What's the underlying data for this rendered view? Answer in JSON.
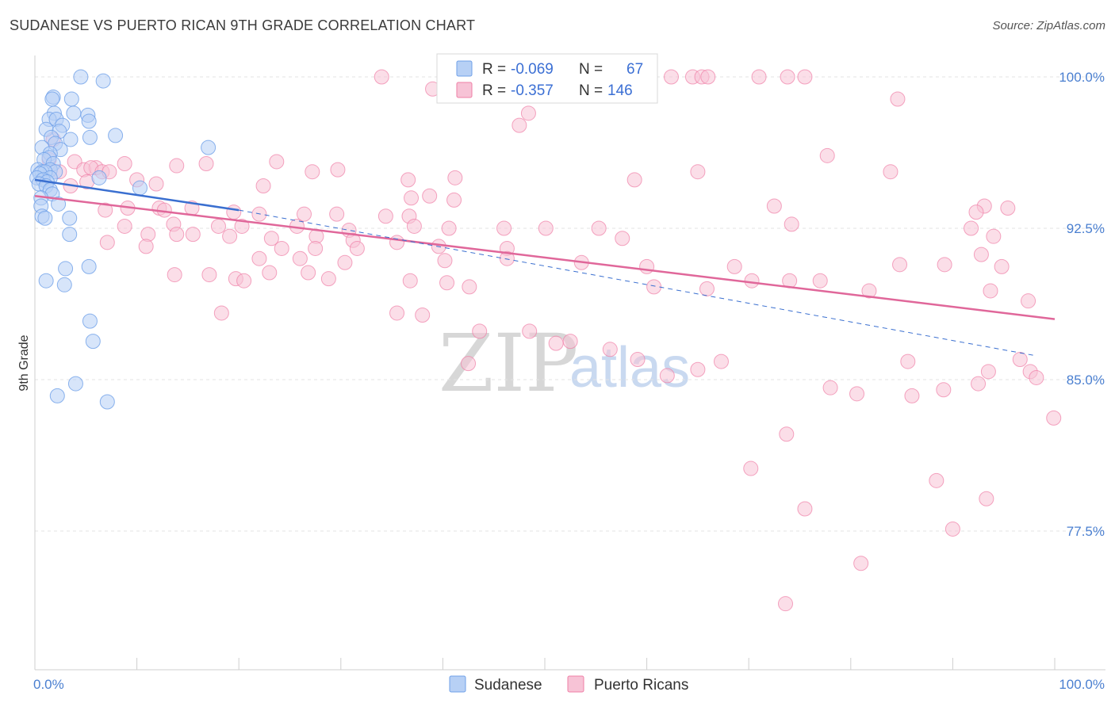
{
  "title": "SUDANESE VS PUERTO RICAN 9TH GRADE CORRELATION CHART",
  "source": "Source: ZipAtlas.com",
  "colors": {
    "sudanese": "#6fa0e8",
    "sudanese_fill": "#b7d0f5",
    "puerto_rican": "#ef7fa6",
    "puerto_rican_fill": "#f7c3d6",
    "blue_line": "#3a6fd0",
    "pink_line": "#e0679a",
    "label_blue": "#3b6fd4"
  },
  "legend": {
    "row1": {
      "r_label": "R =",
      "r_value": "-0.069",
      "n_label": "N =",
      "n_value": "67"
    },
    "row2": {
      "r_label": "R =",
      "r_value": "-0.357",
      "n_label": "N =",
      "n_value": "146"
    }
  },
  "bottom_legend": {
    "sudanese": "Sudanese",
    "puerto_ricans": "Puerto Ricans"
  },
  "watermark": {
    "zip": "ZIP",
    "atlas": "atlas"
  },
  "chart_data": {
    "type": "scatter",
    "xlabel": "",
    "ylabel": "9th Grade",
    "xlim": [
      0,
      100
    ],
    "ylim": [
      71.0,
      100.6
    ],
    "x_tick_labels": [
      {
        "v": 0,
        "label": "0.0%"
      },
      {
        "v": 100,
        "label": "100.0%"
      }
    ],
    "x_minor_ticks": [
      0,
      10,
      20,
      30,
      40,
      50,
      60,
      70,
      80,
      90,
      100
    ],
    "y_ticks": [
      {
        "v": 100.0,
        "label": "100.0%"
      },
      {
        "v": 92.5,
        "label": "92.5%"
      },
      {
        "v": 85.0,
        "label": "85.0%"
      },
      {
        "v": 77.5,
        "label": "77.5%"
      }
    ],
    "series": [
      {
        "name": "Sudanese",
        "trend": {
          "x0": 0,
          "y0": 94.9,
          "x1": 20,
          "y1": 93.4,
          "dashed_to_x": 98,
          "dashed_to_y": 86.2
        },
        "points": [
          [
            4.5,
            100.0
          ],
          [
            6.7,
            99.8
          ],
          [
            1.8,
            99.0
          ],
          [
            3.6,
            98.9
          ],
          [
            1.7,
            98.9
          ],
          [
            3.8,
            98.2
          ],
          [
            5.2,
            98.1
          ],
          [
            1.9,
            98.2
          ],
          [
            1.4,
            97.9
          ],
          [
            5.3,
            97.8
          ],
          [
            2.1,
            97.9
          ],
          [
            2.7,
            97.6
          ],
          [
            1.1,
            97.4
          ],
          [
            2.4,
            97.3
          ],
          [
            7.9,
            97.1
          ],
          [
            5.4,
            97.0
          ],
          [
            1.6,
            97.0
          ],
          [
            3.5,
            96.9
          ],
          [
            2.0,
            96.7
          ],
          [
            0.7,
            96.5
          ],
          [
            17.0,
            96.5
          ],
          [
            2.5,
            96.4
          ],
          [
            1.5,
            96.2
          ],
          [
            1.4,
            96.0
          ],
          [
            0.9,
            95.9
          ],
          [
            1.8,
            95.7
          ],
          [
            1.5,
            95.4
          ],
          [
            0.3,
            95.4
          ],
          [
            0.7,
            95.3
          ],
          [
            2.0,
            95.3
          ],
          [
            1.0,
            95.3
          ],
          [
            0.5,
            95.2
          ],
          [
            0.2,
            95.0
          ],
          [
            1.5,
            95.0
          ],
          [
            6.3,
            95.0
          ],
          [
            0.8,
            94.9
          ],
          [
            1.2,
            94.8
          ],
          [
            0.4,
            94.7
          ],
          [
            1.1,
            94.6
          ],
          [
            1.5,
            94.4
          ],
          [
            10.3,
            94.5
          ],
          [
            1.7,
            94.2
          ],
          [
            0.6,
            94.0
          ],
          [
            2.3,
            93.7
          ],
          [
            0.6,
            93.6
          ],
          [
            0.7,
            93.1
          ],
          [
            1.0,
            93.0
          ],
          [
            3.4,
            93.0
          ],
          [
            3.4,
            92.2
          ],
          [
            5.3,
            90.6
          ],
          [
            3.0,
            90.5
          ],
          [
            2.9,
            89.7
          ],
          [
            1.1,
            89.9
          ],
          [
            5.4,
            87.9
          ],
          [
            5.7,
            86.9
          ],
          [
            4.0,
            84.8
          ],
          [
            2.2,
            84.2
          ],
          [
            7.1,
            83.9
          ]
        ]
      },
      {
        "name": "Puerto Ricans",
        "trend": {
          "x0": 0,
          "y0": 94.1,
          "x1": 100,
          "y1": 88.0
        },
        "points": [
          [
            34.0,
            100.0
          ],
          [
            48.0,
            100.0
          ],
          [
            50.8,
            100.0
          ],
          [
            62.4,
            100.0
          ],
          [
            64.5,
            100.0
          ],
          [
            65.4,
            100.0
          ],
          [
            66.0,
            100.0
          ],
          [
            71.0,
            100.0
          ],
          [
            73.8,
            100.0
          ],
          [
            75.5,
            100.0
          ],
          [
            39.0,
            99.4
          ],
          [
            84.6,
            98.9
          ],
          [
            48.4,
            98.2
          ],
          [
            47.5,
            97.6
          ],
          [
            1.8,
            96.9
          ],
          [
            77.7,
            96.1
          ],
          [
            1.4,
            95.9
          ],
          [
            3.9,
            95.8
          ],
          [
            8.8,
            95.7
          ],
          [
            16.8,
            95.7
          ],
          [
            23.7,
            95.8
          ],
          [
            13.9,
            95.6
          ],
          [
            4.8,
            95.4
          ],
          [
            29.7,
            95.4
          ],
          [
            6.0,
            95.5
          ],
          [
            5.5,
            95.5
          ],
          [
            6.6,
            95.3
          ],
          [
            7.3,
            95.3
          ],
          [
            2.4,
            95.3
          ],
          [
            27.2,
            95.3
          ],
          [
            65.0,
            95.3
          ],
          [
            83.9,
            95.3
          ],
          [
            41.2,
            95.0
          ],
          [
            10.0,
            94.9
          ],
          [
            36.6,
            94.9
          ],
          [
            58.8,
            94.9
          ],
          [
            11.9,
            94.7
          ],
          [
            3.5,
            94.6
          ],
          [
            5.1,
            94.8
          ],
          [
            22.4,
            94.6
          ],
          [
            36.9,
            94.0
          ],
          [
            38.7,
            94.1
          ],
          [
            41.1,
            93.9
          ],
          [
            6.9,
            93.4
          ],
          [
            9.1,
            93.5
          ],
          [
            12.2,
            93.5
          ],
          [
            12.7,
            93.4
          ],
          [
            15.4,
            93.5
          ],
          [
            19.5,
            93.3
          ],
          [
            22.0,
            93.2
          ],
          [
            26.4,
            93.2
          ],
          [
            29.6,
            93.2
          ],
          [
            34.4,
            93.1
          ],
          [
            36.7,
            93.1
          ],
          [
            72.5,
            93.6
          ],
          [
            93.1,
            93.6
          ],
          [
            95.4,
            93.5
          ],
          [
            92.3,
            93.3
          ],
          [
            13.6,
            92.7
          ],
          [
            8.8,
            92.6
          ],
          [
            18.0,
            92.6
          ],
          [
            20.3,
            92.6
          ],
          [
            25.7,
            92.6
          ],
          [
            30.8,
            92.4
          ],
          [
            37.2,
            92.6
          ],
          [
            40.6,
            92.5
          ],
          [
            46.0,
            92.5
          ],
          [
            50.1,
            92.5
          ],
          [
            55.3,
            92.5
          ],
          [
            57.6,
            92.0
          ],
          [
            74.2,
            92.7
          ],
          [
            91.8,
            92.5
          ],
          [
            11.1,
            92.2
          ],
          [
            13.9,
            92.2
          ],
          [
            15.5,
            92.2
          ],
          [
            19.1,
            92.1
          ],
          [
            23.2,
            92.0
          ],
          [
            27.6,
            92.1
          ],
          [
            31.2,
            91.9
          ],
          [
            35.5,
            91.8
          ],
          [
            7.1,
            91.8
          ],
          [
            10.9,
            91.6
          ],
          [
            24.2,
            91.5
          ],
          [
            27.5,
            91.5
          ],
          [
            31.6,
            91.5
          ],
          [
            39.6,
            91.6
          ],
          [
            46.3,
            91.5
          ],
          [
            94.0,
            92.1
          ],
          [
            92.8,
            91.2
          ],
          [
            22.0,
            91.0
          ],
          [
            26.0,
            91.0
          ],
          [
            30.4,
            90.8
          ],
          [
            40.2,
            90.9
          ],
          [
            46.3,
            91.0
          ],
          [
            53.6,
            90.8
          ],
          [
            60.0,
            90.6
          ],
          [
            68.6,
            90.6
          ],
          [
            84.8,
            90.7
          ],
          [
            89.2,
            90.7
          ],
          [
            94.8,
            90.6
          ],
          [
            13.7,
            90.2
          ],
          [
            17.1,
            90.2
          ],
          [
            19.7,
            90.0
          ],
          [
            20.5,
            89.9
          ],
          [
            23.0,
            90.3
          ],
          [
            26.8,
            90.3
          ],
          [
            28.8,
            90.0
          ],
          [
            36.8,
            89.9
          ],
          [
            40.4,
            89.8
          ],
          [
            42.6,
            89.6
          ],
          [
            60.7,
            89.6
          ],
          [
            65.9,
            89.5
          ],
          [
            70.3,
            89.9
          ],
          [
            74.0,
            89.9
          ],
          [
            77.0,
            89.9
          ],
          [
            81.8,
            89.4
          ],
          [
            93.7,
            89.4
          ],
          [
            97.4,
            88.9
          ],
          [
            18.3,
            88.3
          ],
          [
            35.5,
            88.3
          ],
          [
            38.0,
            88.2
          ],
          [
            43.6,
            87.4
          ],
          [
            48.5,
            87.4
          ],
          [
            52.5,
            86.9
          ],
          [
            56.4,
            86.5
          ],
          [
            59.1,
            86.0
          ],
          [
            67.3,
            85.9
          ],
          [
            85.6,
            85.9
          ],
          [
            93.5,
            85.4
          ],
          [
            96.6,
            86.0
          ],
          [
            97.6,
            85.4
          ],
          [
            98.2,
            85.1
          ],
          [
            99.9,
            83.1
          ],
          [
            42.5,
            85.8
          ],
          [
            51.1,
            86.8
          ],
          [
            62.0,
            85.2
          ],
          [
            65.0,
            85.5
          ],
          [
            78.0,
            84.6
          ],
          [
            80.6,
            84.3
          ],
          [
            86.0,
            84.2
          ],
          [
            89.1,
            84.5
          ],
          [
            92.5,
            84.8
          ],
          [
            73.7,
            82.3
          ],
          [
            70.2,
            80.6
          ],
          [
            88.4,
            80.0
          ],
          [
            93.3,
            79.1
          ],
          [
            75.5,
            78.6
          ],
          [
            90.0,
            77.6
          ],
          [
            81.0,
            75.9
          ],
          [
            73.6,
            73.9
          ]
        ]
      }
    ]
  }
}
